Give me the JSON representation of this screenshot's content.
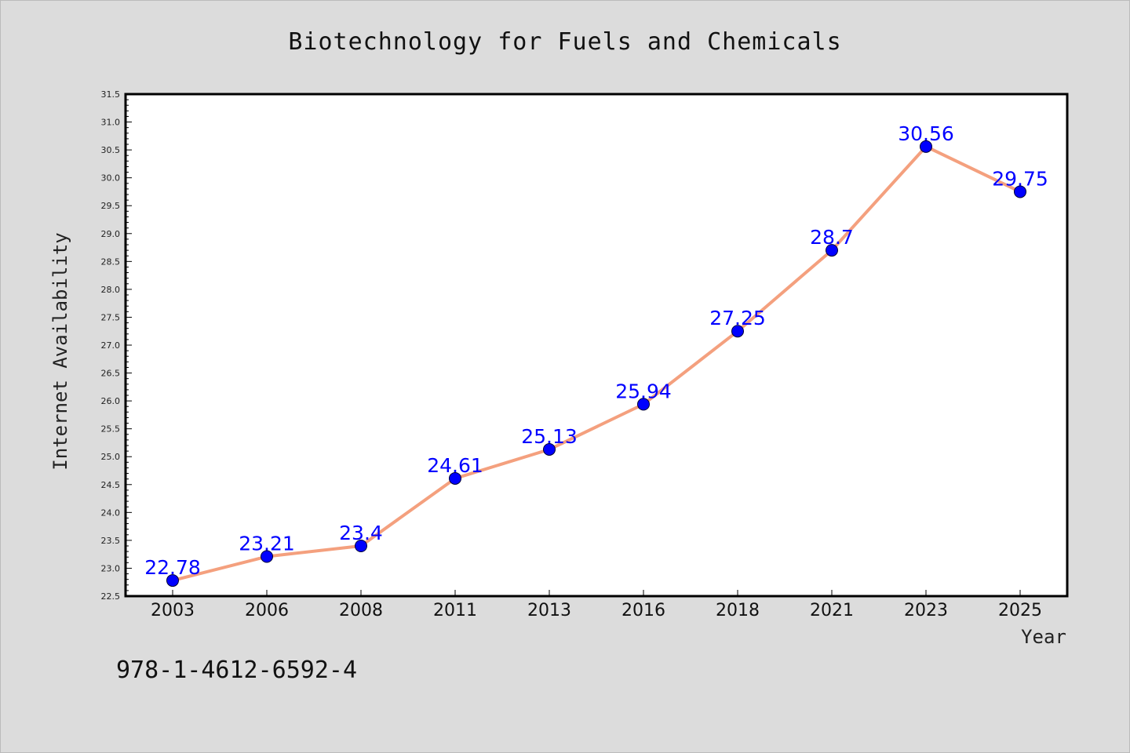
{
  "chart_data": {
    "type": "line",
    "title": "Biotechnology for Fuels and Chemicals",
    "xlabel": "Year",
    "ylabel": "Internet Availability",
    "categories": [
      "2003",
      "2006",
      "2008",
      "2011",
      "2013",
      "2016",
      "2018",
      "2021",
      "2023",
      "2025"
    ],
    "values": [
      22.78,
      23.21,
      23.4,
      24.61,
      25.13,
      25.94,
      27.25,
      28.7,
      30.56,
      29.75
    ],
    "data_labels": [
      "22.78",
      "23.21",
      "23.4",
      "24.61",
      "25.13",
      "25.94",
      "27.25",
      "28.7",
      "30.56",
      "29.75"
    ],
    "ylim": [
      22.5,
      31.5
    ],
    "yticks": [
      "22.5",
      "23.0",
      "23.5",
      "24.0",
      "24.5",
      "25.0",
      "25.5",
      "26.0",
      "26.5",
      "27.0",
      "27.5",
      "28.0",
      "28.5",
      "29.0",
      "29.5",
      "30.0",
      "30.5",
      "31.0",
      "31.5"
    ],
    "grid": false,
    "colors": {
      "line": "#f4a07e",
      "marker": "#0000ff",
      "label": "#0000ff",
      "background": "#dcdcdc",
      "plot_background": "#ffffff"
    }
  },
  "footer": {
    "isbn": "978-1-4612-6592-4"
  }
}
